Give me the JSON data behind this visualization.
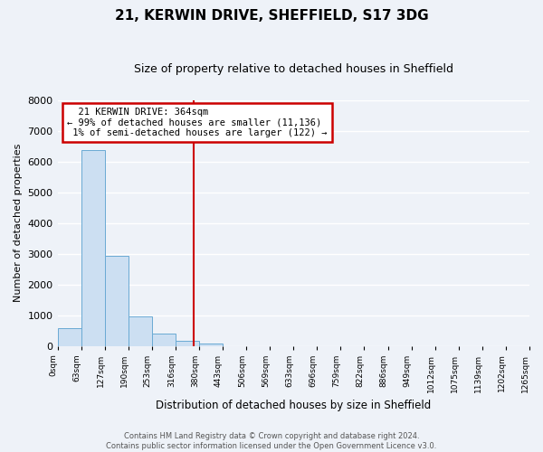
{
  "title": "21, KERWIN DRIVE, SHEFFIELD, S17 3DG",
  "subtitle": "Size of property relative to detached houses in Sheffield",
  "xlabel": "Distribution of detached houses by size in Sheffield",
  "ylabel": "Number of detached properties",
  "bar_values": [
    560,
    6380,
    2930,
    970,
    390,
    150,
    70,
    0,
    0,
    0,
    0,
    0,
    0,
    0,
    0,
    0,
    0,
    0,
    0,
    0
  ],
  "bin_labels": [
    "0sqm",
    "63sqm",
    "127sqm",
    "190sqm",
    "253sqm",
    "316sqm",
    "380sqm",
    "443sqm",
    "506sqm",
    "569sqm",
    "633sqm",
    "696sqm",
    "759sqm",
    "822sqm",
    "886sqm",
    "949sqm",
    "1012sqm",
    "1075sqm",
    "1139sqm",
    "1202sqm",
    "1265sqm"
  ],
  "bar_color": "#ccdff2",
  "bar_edge_color": "#6aaad4",
  "vline_color": "#cc0000",
  "annotation_text": "  21 KERWIN DRIVE: 364sqm  \n← 99% of detached houses are smaller (11,136)\n 1% of semi-detached houses are larger (122) →",
  "annotation_box_color": "#cc0000",
  "ylim": [
    0,
    8000
  ],
  "yticks": [
    0,
    1000,
    2000,
    3000,
    4000,
    5000,
    6000,
    7000,
    8000
  ],
  "background_color": "#eef2f8",
  "grid_color": "#ffffff",
  "footer_line1": "Contains HM Land Registry data © Crown copyright and database right 2024.",
  "footer_line2": "Contains public sector information licensed under the Open Government Licence v3.0."
}
